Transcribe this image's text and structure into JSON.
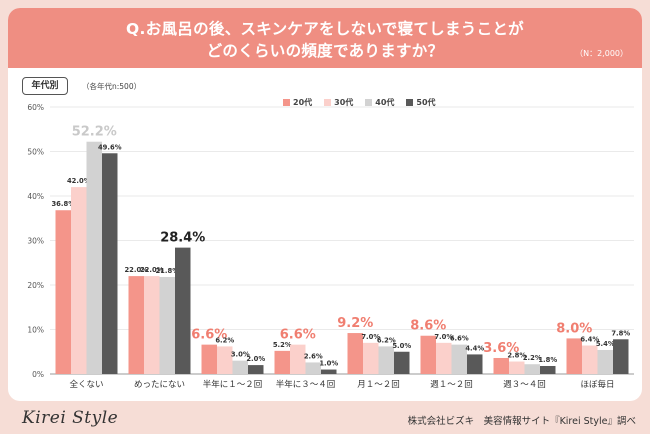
{
  "question": {
    "line1": "Q.お風呂の後、スキンケアをしないで寝てしまうことが",
    "line2": "どのくらいの頻度でありますか？",
    "sample": "（N：2,000）"
  },
  "tag": {
    "label": "年代別",
    "note": "（各年代n:500）"
  },
  "footer": {
    "logo": "Kirei Style",
    "credit": "株式会社ビズキ　美容情報サイト『Kirei Style』調べ"
  },
  "colors": {
    "header": "#ef8e82",
    "highlight": "#f07e70"
  },
  "chart_data": {
    "type": "bar",
    "categories": [
      "全くない",
      "めったにない",
      "半年に１～２回",
      "半年に３～４回",
      "月１～２回",
      "週１～２回",
      "週３～４回",
      "ほぼ毎日"
    ],
    "series": [
      {
        "name": "20代",
        "color": "#f4958a",
        "values": [
          36.8,
          22.0,
          6.6,
          5.2,
          9.2,
          8.6,
          3.6,
          8.0
        ]
      },
      {
        "name": "30代",
        "color": "#fbd0cb",
        "values": [
          42.0,
          22.0,
          6.2,
          6.6,
          7.0,
          7.0,
          2.8,
          6.4
        ]
      },
      {
        "name": "40代",
        "color": "#d2d2d2",
        "values": [
          52.2,
          21.8,
          3.0,
          2.6,
          6.2,
          6.6,
          2.2,
          5.4
        ]
      },
      {
        "name": "50代",
        "color": "#595959",
        "values": [
          49.6,
          28.4,
          2.0,
          1.0,
          5.0,
          4.4,
          1.8,
          7.8
        ]
      }
    ],
    "labels": [
      [
        "36.8%",
        "42.0%",
        "52.2%",
        "49.6%"
      ],
      [
        "22.0%",
        "22.0%",
        "21.8%",
        "28.4%"
      ],
      [
        "6.6%",
        "6.2%",
        "3.0%",
        "2.0%"
      ],
      [
        "5.2%",
        "6.6%",
        "2.6%",
        "1.0%"
      ],
      [
        "9.2%",
        "7.0%",
        "6.2%",
        "5.0%"
      ],
      [
        "8.6%",
        "7.0%",
        "6.6%",
        "4.4%"
      ],
      [
        "3.6%",
        "2.8%",
        "2.2%",
        "1.8%"
      ],
      [
        "8.0%",
        "6.4%",
        "5.4%",
        "7.8%"
      ]
    ],
    "highlight": [
      [
        0,
        2
      ],
      [
        1,
        3
      ],
      [
        2,
        0
      ],
      [
        3,
        1
      ],
      [
        4,
        0
      ],
      [
        5,
        0
      ],
      [
        6,
        0
      ],
      [
        7,
        0
      ]
    ],
    "yticks": [
      "0%",
      "10%",
      "20%",
      "30%",
      "40%",
      "50%",
      "60%"
    ],
    "ylim": [
      0,
      60
    ],
    "grid": true,
    "legend": "top-center"
  }
}
